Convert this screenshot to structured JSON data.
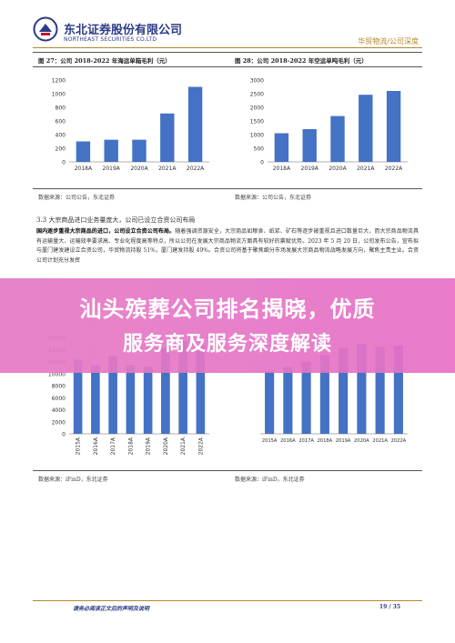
{
  "header": {
    "company_cn": "东北证券股份有限公司",
    "company_en": "NORTHEAST SECURITIES CO.LTD",
    "report_category": "华贸物流/公司深度"
  },
  "figures": {
    "fig27": {
      "title": "图 27：公司 2018-2022 年海运单箱毛利（元）",
      "source": "数据来源：公司公告，东北证券"
    },
    "fig28": {
      "title": "图 28：公司 2018-2022 年空运单吨毛利（元）",
      "source": "数据来源：公司公告，东北证券"
    },
    "fig29": {
      "source": "数据来源：iFinD，东北证券"
    },
    "fig30": {
      "source": "数据来源：iFinD，东北证券"
    }
  },
  "chart_data": [
    {
      "type": "bar",
      "categories": [
        "2018A",
        "2019A",
        "2020A",
        "2021A",
        "2022A"
      ],
      "values": [
        300,
        325,
        325,
        710,
        1100
      ],
      "ylim": [
        0,
        1200
      ],
      "yticks": [
        "0",
        "200",
        "400",
        "600",
        "800",
        "1000",
        "1200"
      ],
      "color": "#4472c4"
    },
    {
      "type": "bar",
      "categories": [
        "2018A",
        "2019A",
        "2020A",
        "2021A",
        "2022A"
      ],
      "values": [
        1050,
        1200,
        1680,
        2460,
        2600
      ],
      "ylim": [
        0,
        3000
      ],
      "yticks": [
        "0",
        "500",
        "1000",
        "1500",
        "2000",
        "2500",
        "3000"
      ],
      "color": "#4472c4"
    },
    {
      "type": "bar",
      "categories": [
        "2015A",
        "2016A",
        "2017A",
        "2018A",
        "2019A",
        "2020A",
        "2021A",
        "2022A"
      ],
      "values": [
        12300,
        11300,
        12900,
        11400,
        11100,
        14300,
        15400,
        14700
      ],
      "ylim": [
        0,
        16000
      ],
      "yticks": [
        "0",
        "2000",
        "4000",
        "6000",
        "8000",
        "10000",
        "12000",
        "14000",
        "16000"
      ],
      "color": "#4472c4"
    },
    {
      "type": "bar",
      "categories": [
        "2015A",
        "2016A",
        "2017A",
        "2018A",
        "2019A",
        "2020A",
        "2021A",
        "2022A"
      ],
      "values": [
        1950,
        2080,
        2250,
        2450,
        2680,
        2800,
        2700,
        2750
      ],
      "ylim": [
        0,
        3000
      ],
      "yticks": [],
      "color": "#4472c4"
    }
  ],
  "section": {
    "heading": "3.3 大宗商品进口业务量庞大，公司已设立合资公司布局",
    "para_bold": "国内逐步重视大宗商品的进口，公司设立合资公司布局。",
    "para_rest": "随着强调资源安全，大宗商品如粮食、纸浆、矿石等逐步被重视且进口数量巨大，而大宗商品物流具有运输量大、运输效率要求高、专业化程度高等特点，所以公司在发展大宗商品物流方面具有较好的禀赋优势。2023 年 5 月 20 日，公司发布公告，宣布拟与厦门建发建设立合资公司，华贸物流持股 51%，厦门建发持股 49%。合资公司将基于聚焦细分市场发展大宗商品物流战略发展方向，聚焦主责主业。合资公司计划充分发挥"
  },
  "banner": {
    "line1": "汕头殡葬公司排名揭晓，优质",
    "line2": "服务商及服务深度解读"
  },
  "footer": {
    "disclaimer": "请务必阅读正文后的声明及说明",
    "page": "19 / 35"
  }
}
